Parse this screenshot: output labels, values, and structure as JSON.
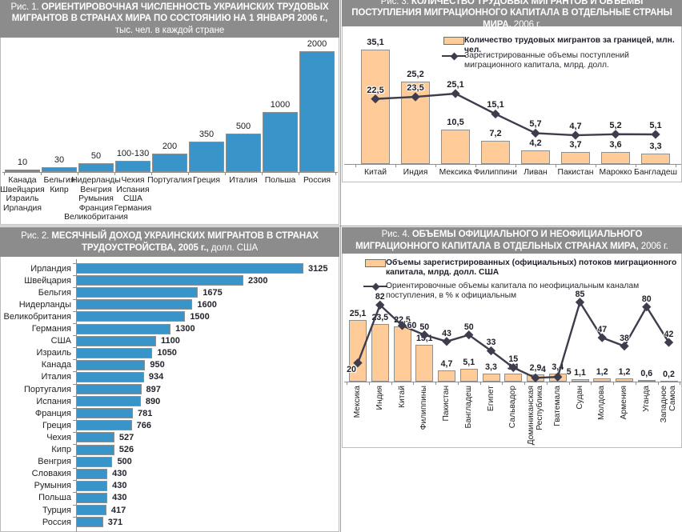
{
  "colors": {
    "bar_blue": "#3894c9",
    "bar_peach": "#ffcc99",
    "bar_border": "#8f8f8f",
    "line_dark": "#3d3d4d",
    "header_bg": "#8c8c8c",
    "panel_border": "#bcbcbc"
  },
  "panels": {
    "fig1": {
      "prefix": "Рис. 1. ",
      "title": "ОРИЕНТИРОВОЧНАЯ ЧИСЛЕННОСТЬ УКРАИНСКИХ ТРУДОВЫХ МИГРАНТОВ В СТРАНАХ МИРА ПО СОСТОЯНИЮ НА 1 ЯНВАРЯ 2006 г.,",
      "suffix": "тыс. чел. в каждой стране"
    },
    "fig2": {
      "prefix": "Рис. 2. ",
      "title": "МЕСЯЧНЫЙ ДОХОД УКРАИНСКИХ МИГРАНТОВ В СТРАНАХ ТРУДОУСТРОЙСТВА, 2005 г.,",
      "suffix": " долл. США"
    },
    "fig3": {
      "prefix": "Рис. 3. ",
      "title": "КОЛИЧЕСТВО ТРУДОВЫХ МИГРАНТОВ И ОБЪЕМЫ ПОСТУПЛЕНИЯ МИГРАЦИОННОГО КАПИТАЛА В ОТДЕЛЬНЫЕ СТРАНЫ МИРА,",
      "suffix": " 2006 г."
    },
    "fig4": {
      "prefix": "Рис. 4. ",
      "title": "ОБЪЕМЫ ОФИЦИАЛЬНОГО И НЕОФИЦИАЛЬНОГО МИГРАЦИОННОГО КАПИТАЛА В ОТДЕЛЬНЫХ СТРАНАХ МИРА,",
      "suffix": " 2006 г."
    }
  },
  "chart_data": [
    {
      "id": "fig1",
      "type": "bar",
      "title": "Ориентировочная численность украинских трудовых мигрантов в странах мира по состоянию на 1 января 2006 г.",
      "ylabel": "тыс. чел. в каждой стране",
      "categories": [
        [
          "Канада",
          "Швейцария",
          "Израиль",
          "Ирландия"
        ],
        [
          "Бельгия",
          "Кипр"
        ],
        [
          "Нидерланды",
          "Венгрия",
          "Румыния",
          "Франция",
          "Великобритания"
        ],
        [
          "Чехия",
          "Испания",
          "США",
          "Германия"
        ],
        [
          "Португалия"
        ],
        [
          "Греция"
        ],
        [
          "Италия"
        ],
        [
          "Польша"
        ],
        [
          "Россия"
        ]
      ],
      "values": [
        10,
        30,
        50,
        115,
        200,
        350,
        500,
        1000,
        2000
      ],
      "value_labels": [
        "10",
        "30",
        "50",
        "100-130",
        "200",
        "350",
        "500",
        "1000",
        "2000"
      ],
      "display_heights_pct": [
        2,
        4,
        7,
        9,
        15,
        25,
        32,
        50,
        100
      ]
    },
    {
      "id": "fig2",
      "type": "bar-horizontal",
      "title": "Месячный доход украинских мигрантов в странах трудоустройства, 2005 г.",
      "xlabel": "долл. США",
      "xlim": [
        0,
        3300
      ],
      "categories": [
        "Ирландия",
        "Швейцария",
        "Бельгия",
        "Нидерланды",
        "Великобритания",
        "Германия",
        "США",
        "Израиль",
        "Канада",
        "Италия",
        "Португалия",
        "Испания",
        "Франция",
        "Греция",
        "Чехия",
        "Кипр",
        "Венгрия",
        "Словакия",
        "Румыния",
        "Польша",
        "Турция",
        "Россия"
      ],
      "values": [
        3125,
        2300,
        1675,
        1600,
        1500,
        1300,
        1100,
        1050,
        950,
        934,
        897,
        890,
        781,
        766,
        527,
        526,
        500,
        430,
        430,
        430,
        417,
        371
      ]
    },
    {
      "id": "fig3",
      "type": "bar+line",
      "title": "Количество трудовых мигрантов и объемы поступления миграционного капитала в отдельные страны мира, 2006 г.",
      "legend": [
        {
          "swatch": "bar",
          "label": "Количество трудовых мигрантов за границей, млн. чел."
        },
        {
          "swatch": "line",
          "label": "Зарегистрированные объемы поступлений миграционного капитала, млрд. долл."
        }
      ],
      "categories": [
        "Китай",
        "Индия",
        "Мексика",
        "Филиппини",
        "Ливан",
        "Пакистан",
        "Марокко",
        "Бангладеш"
      ],
      "bar_values": [
        35.1,
        25.2,
        10.5,
        7.2,
        4.2,
        3.7,
        3.6,
        3.3
      ],
      "bar_labels": [
        "35,1",
        "25,2",
        "10,5",
        "7,2",
        "4,2",
        "3,7",
        "3,6",
        "3,3"
      ],
      "line_values": [
        22.5,
        23.5,
        25.1,
        15.1,
        5.7,
        4.7,
        5.2,
        5.1
      ],
      "line_labels": [
        "22,5",
        "23,5",
        "25,1",
        "15,1",
        "5,7",
        "4,7",
        "5,2",
        "5,1"
      ]
    },
    {
      "id": "fig4",
      "type": "bar+line",
      "title": "Объемы официального и неофициального миграционного капитала в отдельных странах мира, 2006 г.",
      "legend": [
        {
          "swatch": "bar",
          "label": "Объемы зарегистрированных (официальных) потоков миграционного капитала, млрд. долл. США"
        },
        {
          "swatch": "line",
          "label": "Ориентировочные объемы капитала по неофициальным каналам поступления, в % к официальным"
        }
      ],
      "categories": [
        "Мексика",
        "Индия",
        "Китай",
        "Филиппины",
        "Пакистан",
        "Бангладеш",
        "Египет",
        "Сальвадор",
        "Доминиканская\nРеспублика",
        "Гватемала",
        "Судан",
        "Молдова",
        "Армения",
        "Уганда",
        "Западное\nСамоа"
      ],
      "bar_values": [
        25.1,
        23.5,
        22.5,
        15.1,
        4.7,
        5.1,
        3.3,
        3.1,
        2.9,
        3.4,
        1.1,
        1.2,
        1.2,
        0.6,
        0.2
      ],
      "bar_labels": [
        "25,1",
        "23,5",
        "22,5",
        "15,1",
        "4,7",
        "5,1",
        "3,3",
        "3,1",
        "2,9",
        "3,4",
        "1,1",
        "1,2",
        "1,2",
        "0,6",
        "0,2"
      ],
      "line_values": [
        20,
        82,
        60,
        50,
        43,
        50,
        33,
        15,
        4,
        5,
        85,
        47,
        38,
        80,
        42
      ],
      "line_labels": [
        "20",
        "82",
        "60",
        "50",
        "43",
        "50",
        "33",
        "15",
        "4",
        "5",
        "85",
        "47",
        "38",
        "80",
        "42"
      ]
    }
  ]
}
